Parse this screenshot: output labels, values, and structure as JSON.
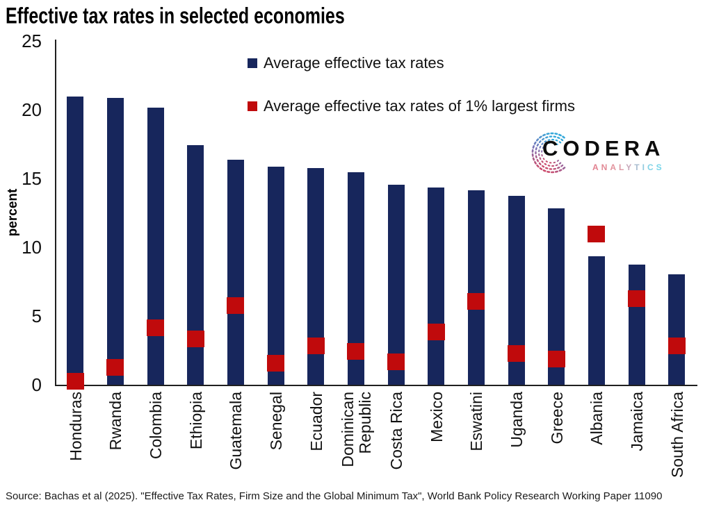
{
  "title": "Effective tax rates in selected economies",
  "y_axis": {
    "label": "percent",
    "ticks": [
      25,
      20,
      15,
      10,
      5,
      0
    ]
  },
  "legend": [
    {
      "label": "Average effective tax rates",
      "color": "#17265C"
    },
    {
      "label": "Average effective tax rates of 1% largest firms",
      "color": "#C00A0C"
    }
  ],
  "chart_data": {
    "type": "bar",
    "title": "Effective tax rates in selected economies",
    "ylabel": "percent",
    "ylim": [
      0,
      25
    ],
    "grid": false,
    "legend_position": "top-center-inside",
    "categories": [
      "Honduras",
      "Rwanda",
      "Colombia",
      "Ethiopia",
      "Guatemala",
      "Senegal",
      "Ecuador",
      "Dominican\nRepublic",
      "Costa Rica",
      "Mexico",
      "Eswatini",
      "Uganda",
      "Greece",
      "Albania",
      "Jamaica",
      "South Africa"
    ],
    "series": [
      {
        "name": "Average effective tax rates",
        "mark": "bar",
        "color": "#17265C",
        "values": [
          21.0,
          20.9,
          20.2,
          17.5,
          16.4,
          15.9,
          15.8,
          15.5,
          14.6,
          14.4,
          14.2,
          13.8,
          12.9,
          9.4,
          8.8,
          8.1
        ]
      },
      {
        "name": "Average effective tax rates of 1% largest firms",
        "mark": "square-marker",
        "color": "#C00A0C",
        "values": [
          0.3,
          1.3,
          4.2,
          3.4,
          5.8,
          1.6,
          2.9,
          2.5,
          1.7,
          3.9,
          6.1,
          2.3,
          1.9,
          11.0,
          6.3,
          2.9
        ]
      }
    ]
  },
  "logo": {
    "name": "CODERA",
    "sub": "ANALYTICS",
    "analytics_colors": [
      "#e2808f",
      "#e28a96",
      "#e2939d",
      "#dd9aa6",
      "#c9a8ba",
      "#a8bcd0",
      "#90cade",
      "#82d2e6",
      "#79d6ea"
    ],
    "mark_colors": {
      "top": "#35a9da",
      "mid": "#7b74b8",
      "bottom": "#d94560"
    }
  },
  "source": "Source: Bachas et al (2025). \"Effective Tax Rates, Firm Size and the Global Minimum Tax\", World Bank Policy Research Working Paper 11090"
}
